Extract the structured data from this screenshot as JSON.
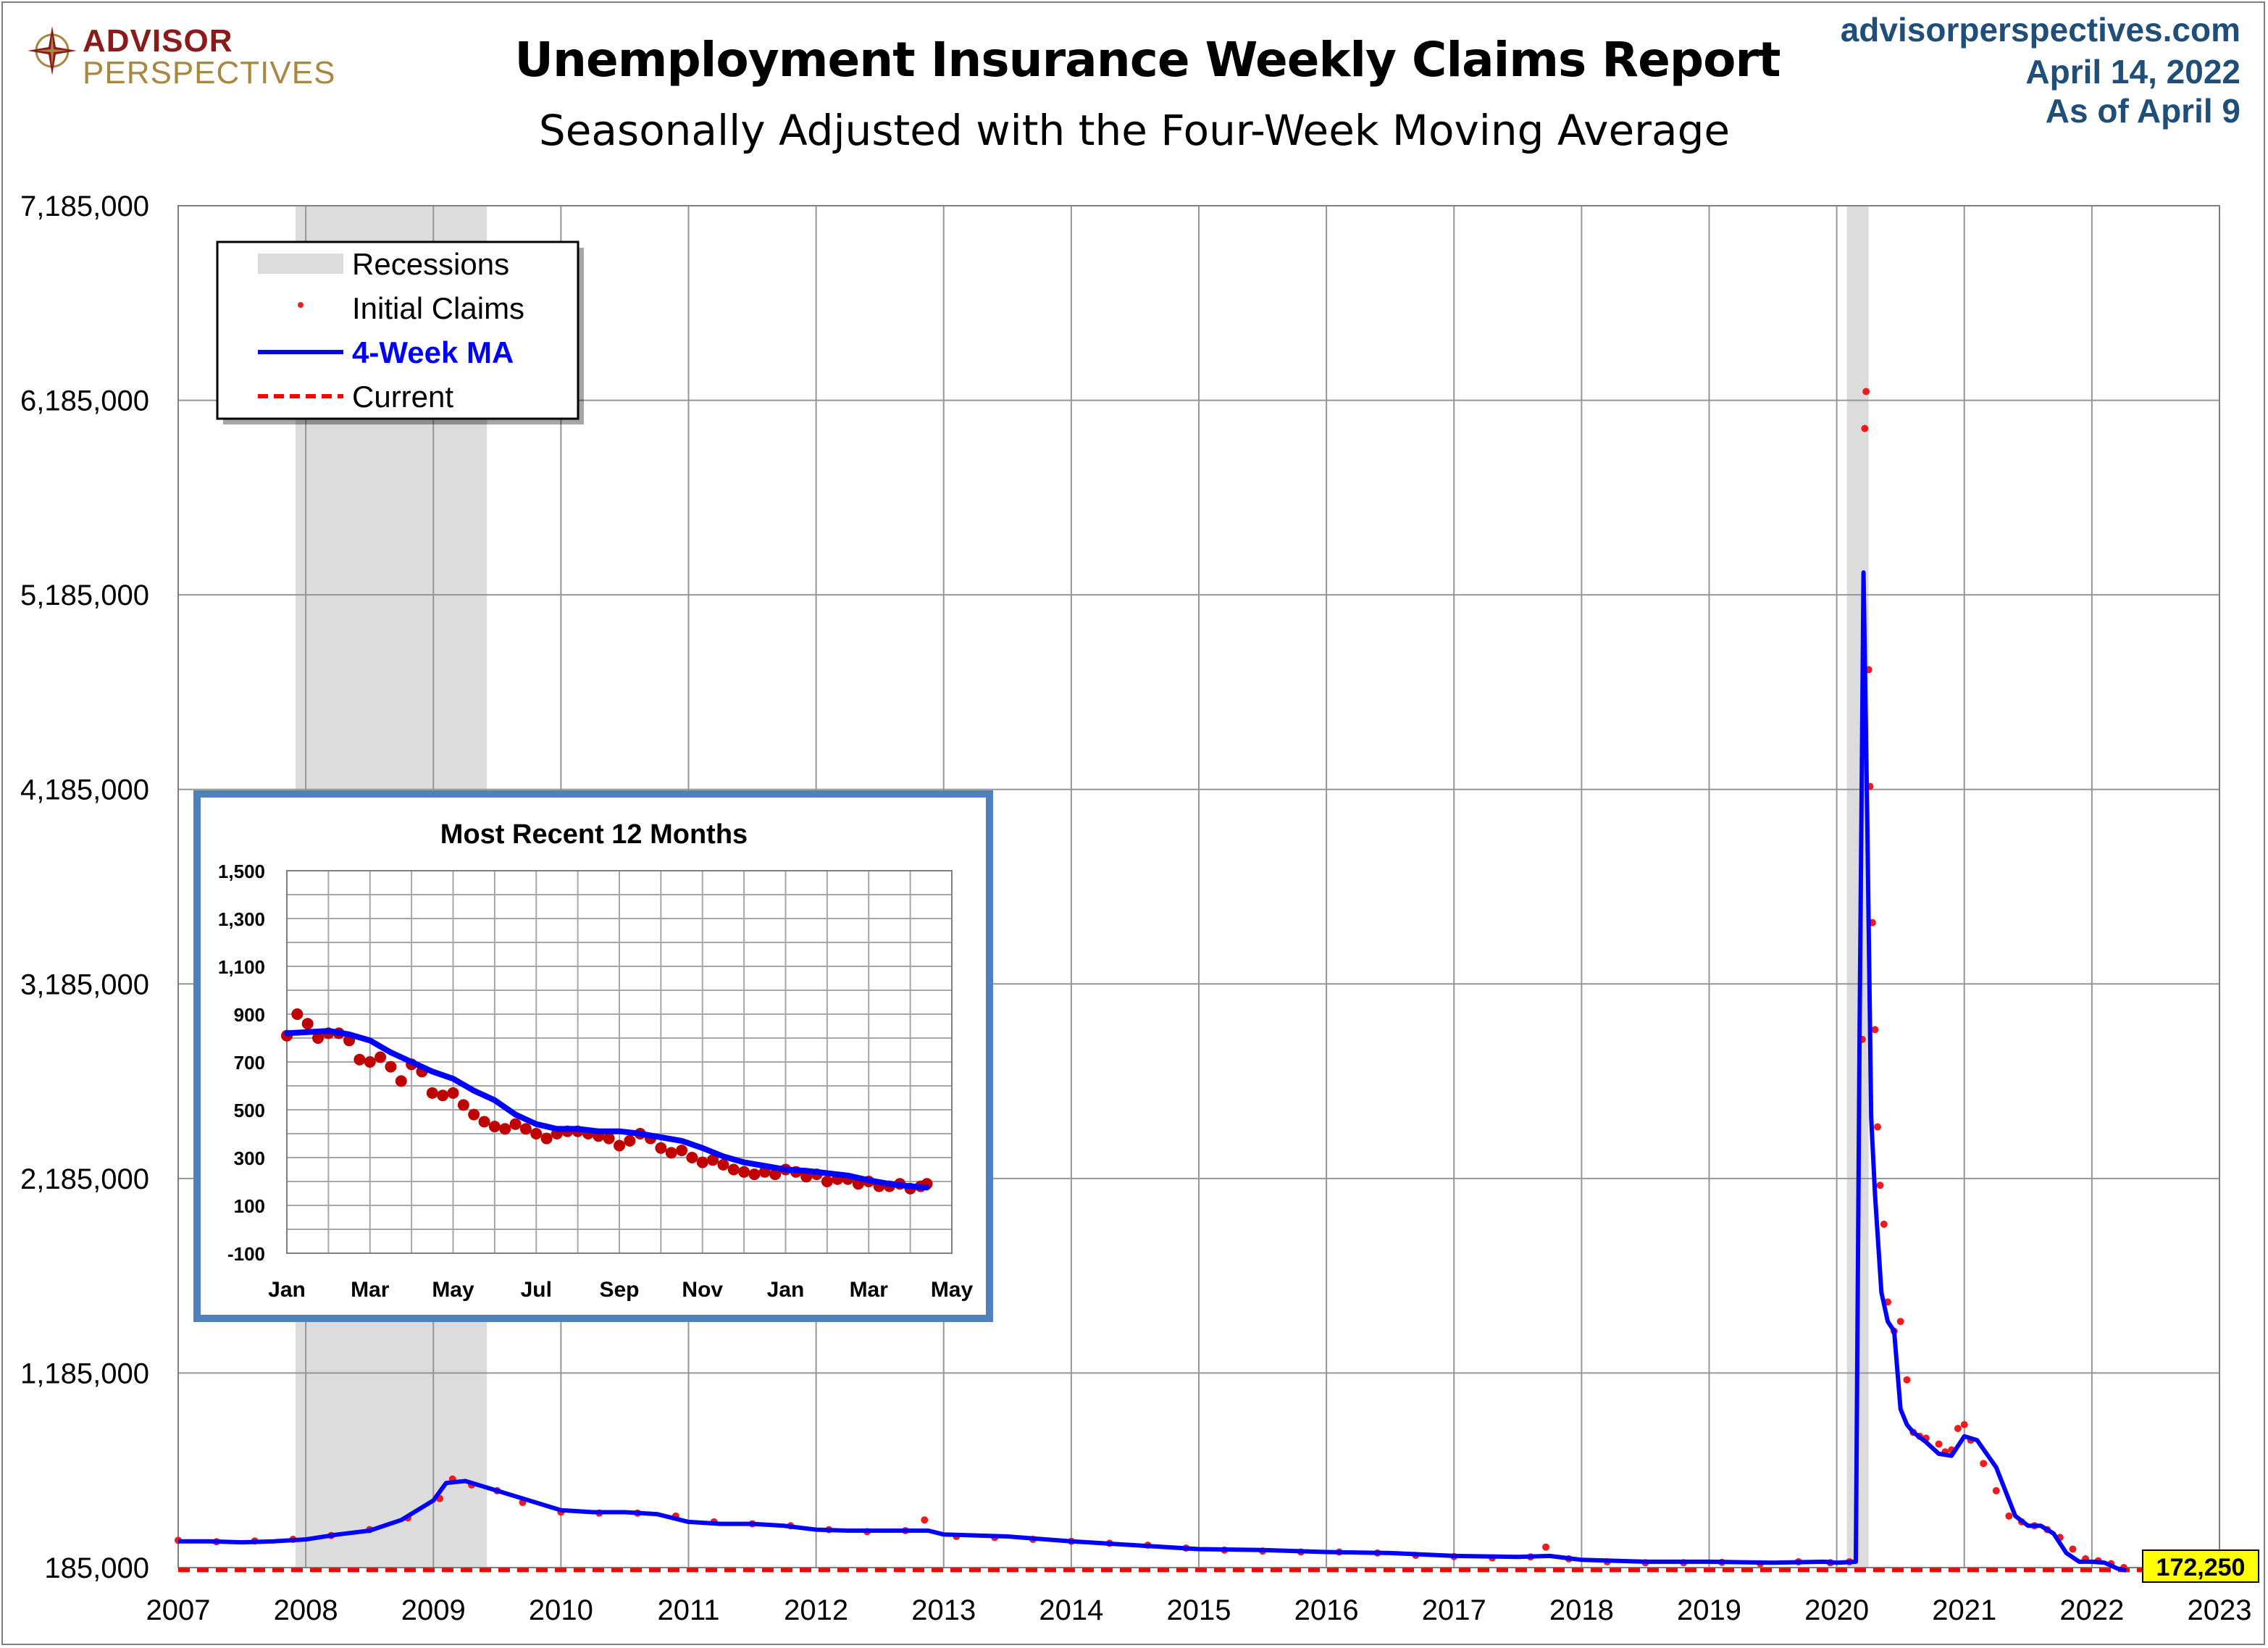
{
  "header": {
    "title": "Unemployment Insurance Weekly Claims Report",
    "subtitle": "Seasonally Adjusted with the Four-Week Moving Average",
    "source_site": "advisorperspectives.com",
    "report_date": "April 14, 2022",
    "as_of": "As of April 9"
  },
  "logo": {
    "line1": "ADVISOR",
    "line2": "PERSPECTIVES",
    "icon": "compass-rose-icon"
  },
  "colors": {
    "initial_claims": "#ee1c1c",
    "moving_average": "#0000ff",
    "current_line": "#ff0000",
    "recession": "#dcdcdc",
    "current_badge": "#ffff00",
    "inset_border": "#4f81bd",
    "grid": "#969696"
  },
  "chart_data": [
    {
      "type": "line",
      "title": "Unemployment Insurance Weekly Claims Report",
      "subtitle": "Seasonally Adjusted with the Four-Week Moving Average",
      "xlabel": "",
      "ylabel": "",
      "xlim": [
        2007,
        2023
      ],
      "ylim": [
        185000,
        7185000
      ],
      "x_ticks": [
        "2007",
        "2008",
        "2009",
        "2010",
        "2011",
        "2012",
        "2013",
        "2014",
        "2015",
        "2016",
        "2017",
        "2018",
        "2019",
        "2020",
        "2021",
        "2022",
        "2023"
      ],
      "y_ticks": [
        "185,000",
        "1,185,000",
        "2,185,000",
        "3,185,000",
        "4,185,000",
        "5,185,000",
        "6,185,000",
        "7,185,000"
      ],
      "y_tick_values": [
        185000,
        1185000,
        2185000,
        3185000,
        4185000,
        5185000,
        6185000,
        7185000
      ],
      "grid": true,
      "legend": {
        "position": "top-left",
        "items": [
          {
            "label": "Recessions",
            "style": "band"
          },
          {
            "label": "Initial Claims",
            "style": "dot"
          },
          {
            "label": "4-Week MA",
            "style": "line"
          },
          {
            "label": "Current",
            "style": "dashed"
          }
        ]
      },
      "recessions": [
        [
          2007.92,
          2009.42
        ],
        [
          2020.08,
          2020.25
        ]
      ],
      "current_value": 172250,
      "current_label": "172,250",
      "series": [
        {
          "name": "4-Week MA",
          "x": [
            2007.0,
            2007.25,
            2007.5,
            2007.75,
            2008.0,
            2008.25,
            2008.5,
            2008.75,
            2009.0,
            2009.1,
            2009.25,
            2009.4,
            2009.6,
            2009.8,
            2010.0,
            2010.25,
            2010.5,
            2010.75,
            2011.0,
            2011.25,
            2011.5,
            2011.75,
            2012.0,
            2012.25,
            2012.5,
            2012.75,
            2012.88,
            2013.0,
            2013.5,
            2014.0,
            2014.5,
            2015.0,
            2015.5,
            2016.0,
            2016.5,
            2017.0,
            2017.5,
            2017.75,
            2018.0,
            2018.5,
            2019.0,
            2019.5,
            2019.9,
            2020.0,
            2020.15,
            2020.18,
            2020.21,
            2020.24,
            2020.27,
            2020.3,
            2020.35,
            2020.4,
            2020.45,
            2020.5,
            2020.55,
            2020.6,
            2020.7,
            2020.8,
            2020.9,
            2021.0,
            2021.1,
            2021.25,
            2021.4,
            2021.5,
            2021.6,
            2021.7,
            2021.8,
            2021.9,
            2022.0,
            2022.1,
            2022.2,
            2022.27
          ],
          "values": [
            320000,
            320000,
            315000,
            320000,
            330000,
            355000,
            375000,
            430000,
            530000,
            620000,
            630000,
            600000,
            560000,
            520000,
            480000,
            470000,
            470000,
            460000,
            420000,
            410000,
            410000,
            400000,
            380000,
            375000,
            375000,
            375000,
            375000,
            355000,
            345000,
            320000,
            300000,
            280000,
            275000,
            265000,
            260000,
            245000,
            240000,
            245000,
            225000,
            215000,
            215000,
            210000,
            215000,
            210000,
            215000,
            3000000,
            5300000,
            4000000,
            2500000,
            2100000,
            1600000,
            1450000,
            1400000,
            1000000,
            920000,
            880000,
            830000,
            770000,
            760000,
            860000,
            840000,
            700000,
            450000,
            400000,
            400000,
            360000,
            260000,
            215000,
            215000,
            210000,
            180000,
            170000
          ]
        },
        {
          "name": "Initial Claims",
          "x": [
            2007.0,
            2007.3,
            2007.6,
            2007.9,
            2008.2,
            2008.5,
            2008.8,
            2009.05,
            2009.15,
            2009.3,
            2009.5,
            2009.7,
            2010.0,
            2010.3,
            2010.6,
            2010.9,
            2011.2,
            2011.5,
            2011.8,
            2012.1,
            2012.4,
            2012.7,
            2012.85,
            2013.1,
            2013.4,
            2013.7,
            2014.0,
            2014.3,
            2014.6,
            2014.9,
            2015.2,
            2015.5,
            2015.8,
            2016.1,
            2016.4,
            2016.7,
            2017.0,
            2017.3,
            2017.6,
            2017.72,
            2017.9,
            2018.2,
            2018.5,
            2018.8,
            2019.1,
            2019.4,
            2019.7,
            2019.95,
            2020.1,
            2020.2,
            2020.22,
            2020.23,
            2020.25,
            2020.26,
            2020.28,
            2020.3,
            2020.32,
            2020.34,
            2020.37,
            2020.4,
            2020.45,
            2020.5,
            2020.55,
            2020.6,
            2020.65,
            2020.7,
            2020.8,
            2020.85,
            2020.9,
            2020.95,
            2021.0,
            2021.05,
            2021.15,
            2021.25,
            2021.35,
            2021.45,
            2021.55,
            2021.65,
            2021.75,
            2021.85,
            2021.95,
            2022.05,
            2022.15,
            2022.25
          ],
          "values": [
            325000,
            318000,
            322000,
            330000,
            350000,
            380000,
            440000,
            540000,
            640000,
            610000,
            580000,
            520000,
            470000,
            465000,
            465000,
            450000,
            420000,
            410000,
            400000,
            380000,
            370000,
            375000,
            430000,
            345000,
            340000,
            330000,
            320000,
            310000,
            300000,
            285000,
            275000,
            270000,
            265000,
            265000,
            260000,
            248000,
            242000,
            235000,
            240000,
            290000,
            230000,
            215000,
            210000,
            210000,
            212000,
            205000,
            215000,
            210000,
            215000,
            2900000,
            6040000,
            6230000,
            4800000,
            4200000,
            3500000,
            2950000,
            2450000,
            2150000,
            1950000,
            1550000,
            1400000,
            1450000,
            1150000,
            880000,
            860000,
            850000,
            820000,
            780000,
            790000,
            900000,
            920000,
            840000,
            720000,
            580000,
            450000,
            420000,
            400000,
            380000,
            340000,
            280000,
            230000,
            220000,
            205000,
            185000
          ]
        }
      ]
    },
    {
      "type": "line",
      "title": "Most Recent 12 Months",
      "xlabel": "",
      "ylabel": "",
      "ylim": [
        -100,
        1500
      ],
      "y_ticks": [
        "1,500",
        "1,300",
        "1,100",
        "900",
        "700",
        "500",
        "300",
        "100",
        "-100"
      ],
      "x_ticks": [
        "Jan",
        "Mar",
        "May",
        "Jul",
        "Sep",
        "Nov",
        "Jan",
        "Mar",
        "May"
      ],
      "units": "thousands",
      "series": [
        {
          "name": "4-Week MA",
          "x": [
            0,
            0.5,
            1,
            1.5,
            2,
            2.5,
            3,
            3.5,
            4,
            4.5,
            5,
            5.5,
            6,
            6.5,
            7,
            7.5,
            8,
            8.5,
            9,
            9.5,
            10,
            10.5,
            11,
            11.5,
            12,
            12.5,
            13,
            13.5,
            14,
            14.5,
            15,
            15.4
          ],
          "values": [
            820,
            825,
            830,
            815,
            790,
            740,
            700,
            660,
            630,
            580,
            540,
            480,
            440,
            420,
            420,
            410,
            410,
            400,
            385,
            370,
            340,
            305,
            280,
            265,
            250,
            245,
            235,
            225,
            205,
            190,
            180,
            175
          ]
        },
        {
          "name": "Initial Claims",
          "x": [
            0,
            0.25,
            0.5,
            0.75,
            1,
            1.25,
            1.5,
            1.75,
            2,
            2.25,
            2.5,
            2.75,
            3,
            3.25,
            3.5,
            3.75,
            4,
            4.25,
            4.5,
            4.75,
            5,
            5.25,
            5.5,
            5.75,
            6,
            6.25,
            6.5,
            6.75,
            7,
            7.25,
            7.5,
            7.75,
            8,
            8.25,
            8.5,
            8.75,
            9,
            9.25,
            9.5,
            9.75,
            10,
            10.25,
            10.5,
            10.75,
            11,
            11.25,
            11.5,
            11.75,
            12,
            12.25,
            12.5,
            12.75,
            13,
            13.25,
            13.5,
            13.75,
            14,
            14.25,
            14.5,
            14.75,
            15,
            15.25,
            15.4
          ],
          "values": [
            810,
            900,
            860,
            800,
            820,
            820,
            790,
            710,
            700,
            720,
            680,
            620,
            690,
            660,
            570,
            560,
            570,
            520,
            480,
            450,
            430,
            420,
            440,
            420,
            400,
            380,
            400,
            410,
            410,
            400,
            390,
            380,
            350,
            370,
            400,
            380,
            340,
            320,
            330,
            300,
            280,
            290,
            270,
            250,
            240,
            230,
            240,
            230,
            250,
            240,
            220,
            230,
            200,
            210,
            210,
            190,
            200,
            180,
            180,
            190,
            170,
            180,
            190
          ]
        }
      ]
    }
  ]
}
